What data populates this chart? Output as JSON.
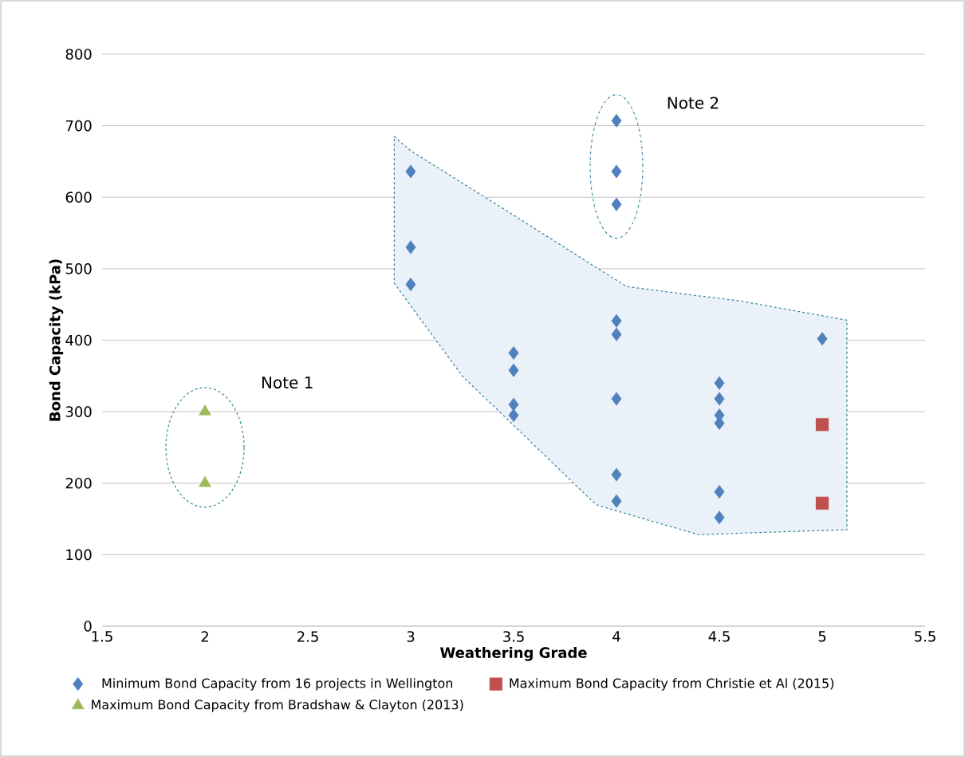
{
  "chart_data": {
    "type": "scatter",
    "xlabel": "Weathering Grade",
    "ylabel": "Bond Capacity (kPa)",
    "xlim": [
      1.5,
      5.5
    ],
    "xticks": [
      1.5,
      2,
      2.5,
      3,
      3.5,
      4,
      4.5,
      5,
      5.5
    ],
    "ylim": [
      0,
      800
    ],
    "yticks": [
      0,
      100,
      200,
      300,
      400,
      500,
      600,
      700,
      800
    ],
    "grid": "y",
    "legend": "bottom",
    "annotations": [
      "Note 1",
      "Note 2"
    ],
    "series": [
      {
        "name": "Minimum Bond Capacity from 16 projects in Wellington",
        "color": "#4f81bd",
        "marker": "diamond",
        "x": [
          3,
          3,
          3,
          3.5,
          3.5,
          3.5,
          3.5,
          4,
          4,
          4,
          4,
          4,
          4,
          4,
          4,
          4.5,
          4.5,
          4.5,
          4.5,
          4.5,
          4.5,
          5
        ],
        "values": [
          636,
          530,
          478,
          382,
          358,
          310,
          295,
          707,
          636,
          590,
          427,
          408,
          318,
          212,
          175,
          340,
          318,
          295,
          284,
          188,
          152,
          402
        ]
      },
      {
        "name": "Maximum Bond Capacity from Christie et Al (2015)",
        "color": "#c0504d",
        "marker": "square",
        "x": [
          5,
          5
        ],
        "values": [
          282,
          172
        ]
      },
      {
        "name": "Maximum Bond Capacity from Bradshaw & Clayton (2013)",
        "color": "#9bbb59",
        "marker": "triangle",
        "x": [
          2,
          2
        ],
        "values": [
          300,
          200
        ]
      },
      {
        "type": "area",
        "color": "#ebf1f9",
        "line_style": "dashed",
        "x": [
          2.92,
          3,
          3.25,
          3.5,
          3.9,
          4.05,
          4.4,
          4.6,
          5.12
        ],
        "values": [
          null,
          null,
          null,
          null,
          null,
          null,
          null,
          null,
          null
        ],
        "lower": [
          480,
          448,
          350,
          281,
          170,
          157,
          128,
          130,
          135
        ],
        "upper": [
          685,
          665,
          620,
          575,
          502,
          475,
          462,
          455,
          428
        ]
      }
    ]
  }
}
